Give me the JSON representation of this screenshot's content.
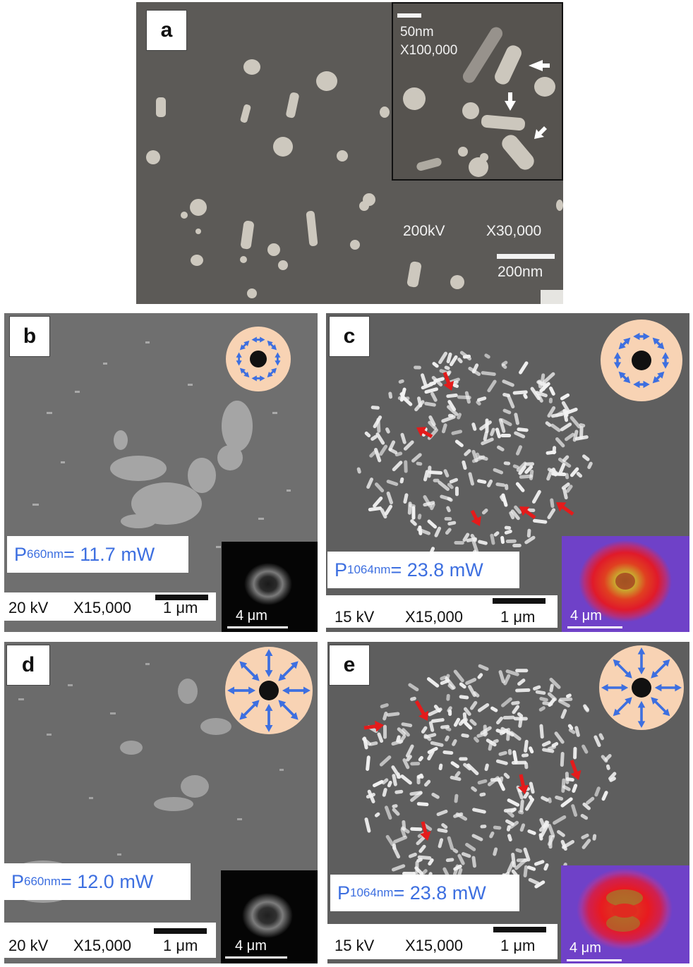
{
  "panels": {
    "a": {
      "label": "a",
      "voltage": "200kV",
      "magnification": "X30,000",
      "scale": "200nm",
      "inset": {
        "scale": "50nm",
        "magnification": "X100,000"
      }
    },
    "b": {
      "label": "b",
      "power_prefix": "P",
      "power_sub": "660nm",
      "power_value": " = 11.7 mW",
      "voltage": "20 kV",
      "magnification": "X15,000",
      "scale": "1 μm",
      "beam_scale": "4 μm",
      "polarization": "azimuthal"
    },
    "c": {
      "label": "c",
      "power_prefix": "P",
      "power_sub": "1064nm",
      "power_value": " = 23.8 mW",
      "voltage": "15 kV",
      "magnification": "X15,000",
      "scale": "1 μm",
      "beam_scale": "4 μm",
      "polarization": "azimuthal"
    },
    "d": {
      "label": "d",
      "power_prefix": "P",
      "power_sub": "660nm",
      "power_value": " = 12.0 mW",
      "voltage": "20 kV",
      "magnification": "X15,000",
      "scale": "1 μm",
      "beam_scale": "4 μm",
      "polarization": "radial"
    },
    "e": {
      "label": "e",
      "power_prefix": "P",
      "power_sub": "1064nm",
      "power_value": " = 23.8 mW",
      "voltage": "15 kV",
      "magnification": "X15,000",
      "scale": "1 μm",
      "beam_scale": "4 μm",
      "polarization": "radial"
    }
  },
  "colors": {
    "tem_bg": "#5c5a57",
    "sem_bg": "#6b6b6b",
    "sem_bright_bg": "#5e5e5e",
    "pol_ring": "#f8d3b4",
    "pol_arrow": "#3d6fe0",
    "power_text": "#3d6fe0",
    "red_arrow": "#e41b1b"
  }
}
